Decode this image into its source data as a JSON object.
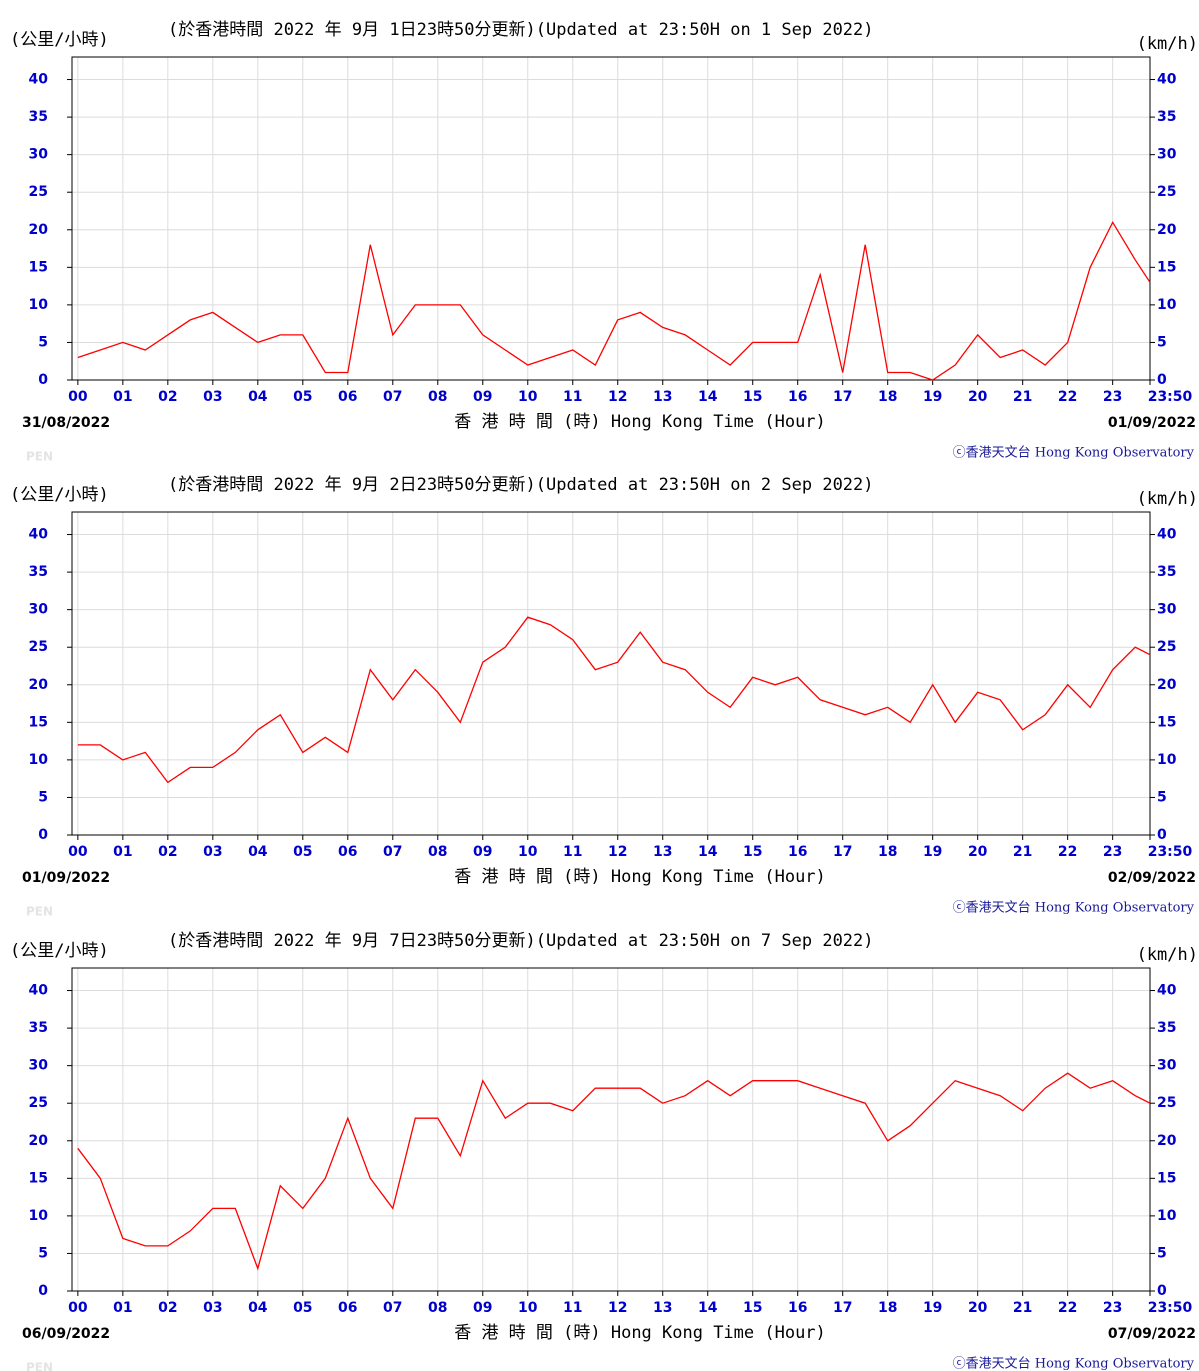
{
  "chart_data": [
    {
      "type": "line",
      "title": "(於香港時間 2022 年 9月 1日23時50分更新)(Updated at 23:50H on 1 Sep 2022)",
      "y_unit_left": "(公里/小時)",
      "y_unit_right": "(km/h)",
      "x_label": "香 港 時 間 (時) Hong Kong Time (Hour)",
      "start_date": "31/08/2022",
      "end_date": "01/09/2022",
      "credit": "ⓒ香港天文台 Hong Kong Observatory",
      "watermark": "PEN",
      "x": [
        0,
        0.5,
        1,
        1.5,
        2,
        2.5,
        3,
        3.5,
        4,
        4.5,
        5,
        5.5,
        6,
        6.5,
        7,
        7.5,
        8,
        8.5,
        9,
        9.5,
        10,
        10.5,
        11,
        11.5,
        12,
        12.5,
        13,
        13.5,
        14,
        14.5,
        15,
        15.5,
        16,
        16.5,
        17,
        17.5,
        18,
        18.5,
        19,
        19.5,
        20,
        20.5,
        21,
        21.5,
        22,
        22.5,
        23,
        23.5,
        23.83
      ],
      "values": [
        3,
        4,
        5,
        4,
        6,
        8,
        9,
        7,
        5,
        6,
        6,
        1,
        1,
        18,
        6,
        10,
        10,
        10,
        6,
        4,
        2,
        3,
        4,
        2,
        8,
        9,
        7,
        6,
        4,
        2,
        5,
        5,
        5,
        14,
        1,
        18,
        1,
        1,
        0,
        2,
        6,
        3,
        4,
        2,
        5,
        15,
        21,
        16,
        13
      ],
      "color": "#ff0000",
      "xlim": [
        -0.13,
        23.83
      ],
      "xticks": [
        {
          "value": 0,
          "label": "00"
        },
        {
          "value": 1,
          "label": "01"
        },
        {
          "value": 2,
          "label": "02"
        },
        {
          "value": 3,
          "label": "03"
        },
        {
          "value": 4,
          "label": "04"
        },
        {
          "value": 5,
          "label": "05"
        },
        {
          "value": 6,
          "label": "06"
        },
        {
          "value": 7,
          "label": "07"
        },
        {
          "value": 8,
          "label": "08"
        },
        {
          "value": 9,
          "label": "09"
        },
        10,
        11,
        12,
        13,
        14,
        15,
        16,
        17,
        18,
        19,
        20,
        21,
        22,
        23,
        {
          "value": 23.83,
          "label": "23:50"
        }
      ],
      "ylim": [
        0,
        43
      ],
      "yticks": [
        0,
        5,
        10,
        15,
        20,
        25,
        30,
        35,
        40
      ],
      "grid": true
    },
    {
      "type": "line",
      "title": "(於香港時間 2022 年 9月 2日23時50分更新)(Updated at 23:50H on 2 Sep 2022)",
      "y_unit_left": "(公里/小時)",
      "y_unit_right": "(km/h)",
      "x_label": "香 港 時 間 (時) Hong Kong Time (Hour)",
      "start_date": "01/09/2022",
      "end_date": "02/09/2022",
      "credit": "ⓒ香港天文台 Hong Kong Observatory",
      "watermark": "PEN",
      "x": [
        0,
        0.5,
        1,
        1.5,
        2,
        2.5,
        3,
        3.5,
        4,
        4.5,
        5,
        5.5,
        6,
        6.5,
        7,
        7.5,
        8,
        8.5,
        9,
        9.5,
        10,
        10.5,
        11,
        11.5,
        12,
        12.5,
        13,
        13.5,
        14,
        14.5,
        15,
        15.5,
        16,
        16.5,
        17,
        17.5,
        18,
        18.5,
        19,
        19.5,
        20,
        20.5,
        21,
        21.5,
        22,
        22.5,
        23,
        23.5,
        23.83
      ],
      "values": [
        12,
        12,
        10,
        11,
        7,
        9,
        9,
        11,
        14,
        16,
        11,
        13,
        11,
        22,
        18,
        22,
        19,
        15,
        23,
        25,
        29,
        28,
        26,
        22,
        23,
        27,
        23,
        22,
        19,
        17,
        21,
        20,
        21,
        18,
        17,
        16,
        17,
        15,
        20,
        15,
        19,
        18,
        14,
        16,
        20,
        17,
        22,
        25,
        24
      ],
      "color": "#ff0000",
      "xlim": [
        -0.13,
        23.83
      ],
      "xticks": [
        {
          "value": 0,
          "label": "00"
        },
        {
          "value": 1,
          "label": "01"
        },
        {
          "value": 2,
          "label": "02"
        },
        {
          "value": 3,
          "label": "03"
        },
        {
          "value": 4,
          "label": "04"
        },
        {
          "value": 5,
          "label": "05"
        },
        {
          "value": 6,
          "label": "06"
        },
        {
          "value": 7,
          "label": "07"
        },
        {
          "value": 8,
          "label": "08"
        },
        {
          "value": 9,
          "label": "09"
        },
        10,
        11,
        12,
        13,
        14,
        15,
        16,
        17,
        18,
        19,
        20,
        21,
        22,
        23,
        {
          "value": 23.83,
          "label": "23:50"
        }
      ],
      "ylim": [
        0,
        43
      ],
      "yticks": [
        0,
        5,
        10,
        15,
        20,
        25,
        30,
        35,
        40
      ],
      "grid": true
    },
    {
      "type": "line",
      "title": "(於香港時間 2022 年 9月 7日23時50分更新)(Updated at 23:50H on 7 Sep 2022)",
      "y_unit_left": "(公里/小時)",
      "y_unit_right": "(km/h)",
      "x_label": "香 港 時 間 (時) Hong Kong Time (Hour)",
      "start_date": "06/09/2022",
      "end_date": "07/09/2022",
      "credit": "ⓒ香港天文台 Hong Kong Observatory",
      "watermark": "PEN",
      "x": [
        0,
        0.5,
        1,
        1.5,
        2,
        2.5,
        3,
        3.5,
        4,
        4.5,
        5,
        5.5,
        6,
        6.5,
        7,
        7.5,
        8,
        8.5,
        9,
        9.5,
        10,
        10.5,
        11,
        11.5,
        12,
        12.5,
        13,
        13.5,
        14,
        14.5,
        15,
        15.5,
        16,
        16.5,
        17,
        17.5,
        18,
        18.5,
        19,
        19.5,
        20,
        20.5,
        21,
        21.5,
        22,
        22.5,
        23,
        23.5,
        23.83
      ],
      "values": [
        19,
        15,
        7,
        6,
        6,
        8,
        11,
        11,
        3,
        14,
        11,
        15,
        23,
        15,
        11,
        23,
        23,
        18,
        28,
        23,
        25,
        25,
        24,
        27,
        27,
        27,
        25,
        26,
        28,
        26,
        28,
        28,
        28,
        27,
        26,
        25,
        20,
        22,
        25,
        28,
        27,
        26,
        24,
        27,
        29,
        27,
        28,
        26,
        25
      ],
      "color": "#ff0000",
      "xlim": [
        -0.13,
        23.83
      ],
      "xticks": [
        {
          "value": 0,
          "label": "00"
        },
        {
          "value": 1,
          "label": "01"
        },
        {
          "value": 2,
          "label": "02"
        },
        {
          "value": 3,
          "label": "03"
        },
        {
          "value": 4,
          "label": "04"
        },
        {
          "value": 5,
          "label": "05"
        },
        {
          "value": 6,
          "label": "06"
        },
        {
          "value": 7,
          "label": "07"
        },
        {
          "value": 8,
          "label": "08"
        },
        {
          "value": 9,
          "label": "09"
        },
        10,
        11,
        12,
        13,
        14,
        15,
        16,
        17,
        18,
        19,
        20,
        21,
        22,
        23,
        {
          "value": 23.83,
          "label": "23:50"
        }
      ],
      "ylim": [
        0,
        43
      ],
      "yticks": [
        0,
        5,
        10,
        15,
        20,
        25,
        30,
        35,
        40
      ],
      "grid": true
    }
  ]
}
